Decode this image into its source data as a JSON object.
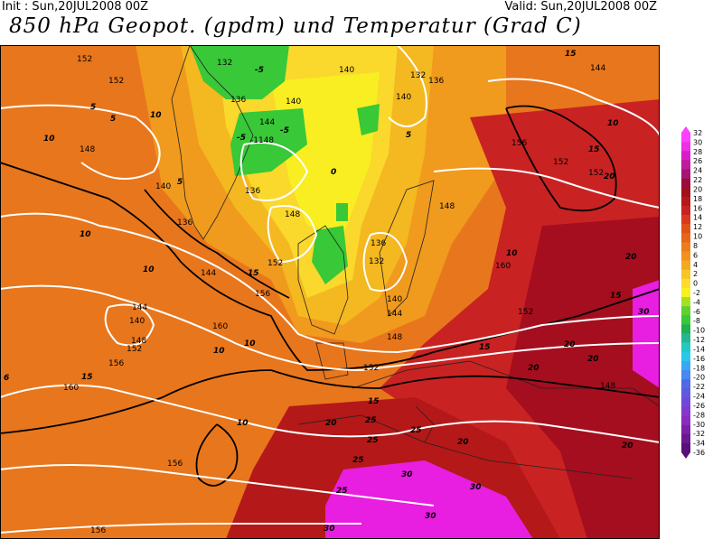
{
  "header": {
    "init": "Init : Sun,20JUL2008 00Z",
    "valid": "Valid: Sun,20JUL2008 00Z",
    "title": "850 hPa Geopot. (gpdm) und Temperatur (Grad C)"
  },
  "map": {
    "geopotential_labels": [
      "152",
      "152",
      "148",
      "140",
      "136",
      "144",
      "144",
      "140",
      "160",
      "156",
      "160",
      "156",
      "148",
      "152",
      "156",
      "140",
      "132",
      "136",
      "140",
      "144",
      "148",
      "152",
      "156",
      "152",
      "148",
      "144",
      "140",
      "136",
      "132",
      "136",
      "132",
      "152",
      "160",
      "152",
      "144",
      "156",
      "148",
      "140",
      "136",
      "152",
      "148",
      "-1148"
    ],
    "temperature_labels": [
      "5",
      "5",
      "10",
      "10",
      "5",
      "10",
      "-5",
      "-5",
      "-5",
      "0",
      "5",
      "10",
      "15",
      "15",
      "10",
      "6",
      "15",
      "10",
      "10",
      "20",
      "15",
      "20",
      "25",
      "25",
      "25",
      "30",
      "30",
      "30",
      "30",
      "20",
      "20",
      "20",
      "15",
      "15",
      "10",
      "10",
      "20",
      "20",
      "20",
      "25",
      "25",
      "15",
      "30"
    ],
    "colors": {
      "ocean_warm": "#e8761c",
      "land_hot": "#a50e1e",
      "cold": "#38c838",
      "hot": "#e81ee0"
    }
  },
  "legend": {
    "ticks": [
      "32",
      "30",
      "28",
      "26",
      "24",
      "22",
      "20",
      "18",
      "16",
      "14",
      "12",
      "10",
      "8",
      "6",
      "4",
      "2",
      "0",
      "-2",
      "-4",
      "-6",
      "-8",
      "-10",
      "-12",
      "-14",
      "-16",
      "-18",
      "-20",
      "-22",
      "-24",
      "-26",
      "-28",
      "-30",
      "-32",
      "-34",
      "-36"
    ],
    "colors": [
      "#ff3fff",
      "#f02ee8",
      "#d81ec8",
      "#c01a9e",
      "#a71472",
      "#9a0c3c",
      "#a0101e",
      "#b41818",
      "#c92222",
      "#d83a1c",
      "#e25218",
      "#e8661a",
      "#ee7c1c",
      "#f0921e",
      "#f4a820",
      "#f8c426",
      "#fcdd2c",
      "#f8f020",
      "#a8e020",
      "#5ed030",
      "#38c838",
      "#20b050",
      "#22b890",
      "#22c8c8",
      "#28c8e8",
      "#38a8f0",
      "#4888f0",
      "#5068e8",
      "#6058e0",
      "#7048d8",
      "#8438cc",
      "#8a2cc0",
      "#7c20a8",
      "#6a1890",
      "#581078"
    ]
  }
}
